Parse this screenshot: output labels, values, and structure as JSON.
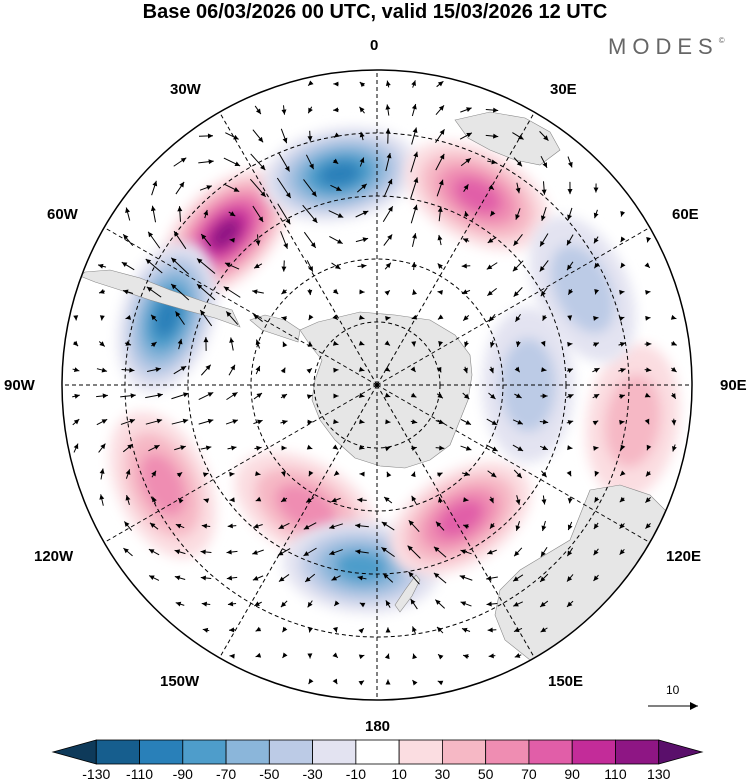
{
  "header": {
    "title": "Base 06/03/2026 00 UTC, valid 15/03/2026 12 UTC",
    "brand": "MODES",
    "brand_mark": "©"
  },
  "map": {
    "projection": "south-polar-stereographic",
    "longitude_labels": {
      "lon_0": "0",
      "lon_30e": "30E",
      "lon_60e": "60E",
      "lon_90e": "90E",
      "lon_120e": "120E",
      "lon_150e": "150E",
      "lon_180": "180",
      "lon_150w": "150W",
      "lon_120w": "120W",
      "lon_90w": "90W",
      "lon_60w": "60W",
      "lon_30w": "30W"
    },
    "reference_vector": {
      "label": "10"
    },
    "anomaly_centers": [
      {
        "lon_deg": -45,
        "radius_frac": 0.68,
        "value": 110
      },
      {
        "lon_deg": -10,
        "radius_frac": 0.68,
        "value": -90
      },
      {
        "lon_deg": 28,
        "radius_frac": 0.68,
        "value": 70
      },
      {
        "lon_deg": -72,
        "radius_frac": 0.7,
        "value": -90
      },
      {
        "lon_deg": -115,
        "radius_frac": 0.75,
        "value": 50
      },
      {
        "lon_deg": -150,
        "radius_frac": 0.45,
        "value": 50
      },
      {
        "lon_deg": -175,
        "radius_frac": 0.58,
        "value": -70
      },
      {
        "lon_deg": 148,
        "radius_frac": 0.5,
        "value": 70
      },
      {
        "lon_deg": 98,
        "radius_frac": 0.82,
        "value": 30
      },
      {
        "lon_deg": 65,
        "radius_frac": 0.72,
        "value": -30
      },
      {
        "lon_deg": 90,
        "radius_frac": 0.48,
        "value": -30
      }
    ]
  },
  "colorbar": {
    "tick_labels": [
      "-130",
      "-110",
      "-90",
      "-70",
      "-50",
      "-30",
      "-10",
      "10",
      "30",
      "50",
      "70",
      "90",
      "110",
      "130"
    ],
    "colors": [
      "#0e3a5a",
      "#165e8e",
      "#2980b9",
      "#4e9dcb",
      "#8bb6da",
      "#bccbe6",
      "#e3e3f1",
      "#ffffff",
      "#fbdde1",
      "#f6b8c5",
      "#ef8db2",
      "#e15ea8",
      "#c32c99",
      "#8e1684",
      "#5a0f6b"
    ]
  }
}
